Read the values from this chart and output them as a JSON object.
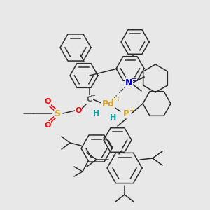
{
  "background_color": "#e8e8e8",
  "mol_color": "#2a2a2a",
  "atom_colors": {
    "Pd": "#DAA520",
    "N": "#0000CD",
    "P": "#DAA520",
    "S": "#DAA520",
    "O": "#FF0000",
    "C": "#555555",
    "H": "#00AAAA"
  },
  "lw": 1.1,
  "figsize": [
    3.0,
    3.0
  ],
  "dpi": 100
}
